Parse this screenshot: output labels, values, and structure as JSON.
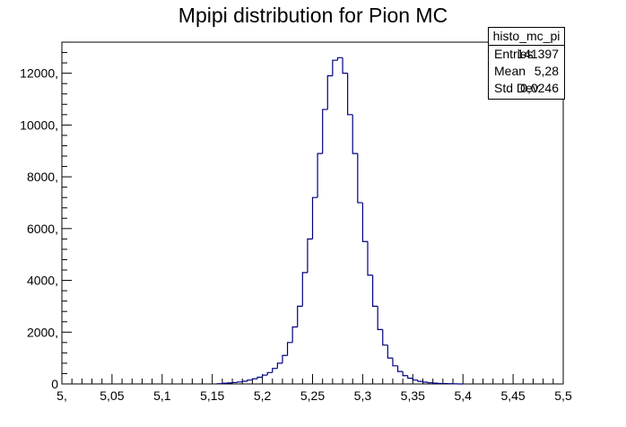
{
  "chart_data": {
    "type": "bar",
    "title": "Mpipi distribution for Pion MC",
    "xlabel": "",
    "ylabel": "",
    "xlim": [
      5.0,
      5.5
    ],
    "ylim": [
      0,
      13200
    ],
    "x_ticks": [
      {
        "value": 5.0,
        "label": "5,"
      },
      {
        "value": 5.05,
        "label": "5,05"
      },
      {
        "value": 5.1,
        "label": "5,1"
      },
      {
        "value": 5.15,
        "label": "5,15"
      },
      {
        "value": 5.2,
        "label": "5,2"
      },
      {
        "value": 5.25,
        "label": "5,25"
      },
      {
        "value": 5.3,
        "label": "5,3"
      },
      {
        "value": 5.35,
        "label": "5,35"
      },
      {
        "value": 5.4,
        "label": "5,4"
      },
      {
        "value": 5.45,
        "label": "5,45"
      },
      {
        "value": 5.5,
        "label": "5,5"
      }
    ],
    "y_ticks": [
      {
        "value": 0,
        "label": "0"
      },
      {
        "value": 2000,
        "label": "2000,"
      },
      {
        "value": 4000,
        "label": "4000,"
      },
      {
        "value": 6000,
        "label": "6000,"
      },
      {
        "value": 8000,
        "label": "8000,"
      },
      {
        "value": 10000,
        "label": "10000,"
      },
      {
        "value": 12000,
        "label": "12000,"
      }
    ],
    "grid": false,
    "bin_width": 0.005,
    "series": [
      {
        "line_color": "#000080",
        "bin_low_edges": [
          5.155,
          5.16,
          5.165,
          5.17,
          5.175,
          5.18,
          5.185,
          5.19,
          5.195,
          5.2,
          5.205,
          5.21,
          5.215,
          5.22,
          5.225,
          5.23,
          5.235,
          5.24,
          5.245,
          5.25,
          5.255,
          5.26,
          5.265,
          5.27,
          5.275,
          5.28,
          5.285,
          5.29,
          5.295,
          5.3,
          5.305,
          5.31,
          5.315,
          5.32,
          5.325,
          5.33,
          5.335,
          5.34,
          5.345,
          5.35,
          5.355,
          5.36,
          5.365,
          5.37,
          5.375,
          5.38,
          5.385,
          5.39,
          5.395
        ],
        "values": [
          10,
          25,
          40,
          55,
          75,
          105,
          150,
          200,
          260,
          340,
          440,
          600,
          800,
          1100,
          1600,
          2200,
          3000,
          4300,
          5600,
          7200,
          8900,
          10600,
          11900,
          12500,
          12600,
          12000,
          10400,
          8900,
          7000,
          5500,
          4200,
          3000,
          2100,
          1500,
          1000,
          700,
          480,
          320,
          220,
          150,
          100,
          70,
          45,
          30,
          20,
          15,
          10,
          5,
          0
        ]
      }
    ]
  },
  "stats_box": {
    "title": "histo_mc_pi",
    "rows": [
      {
        "label": "Entries",
        "value": "141397"
      },
      {
        "label": "Mean",
        "value": "5,28"
      },
      {
        "label": "Std Dev",
        "value": "0,0246"
      }
    ]
  }
}
